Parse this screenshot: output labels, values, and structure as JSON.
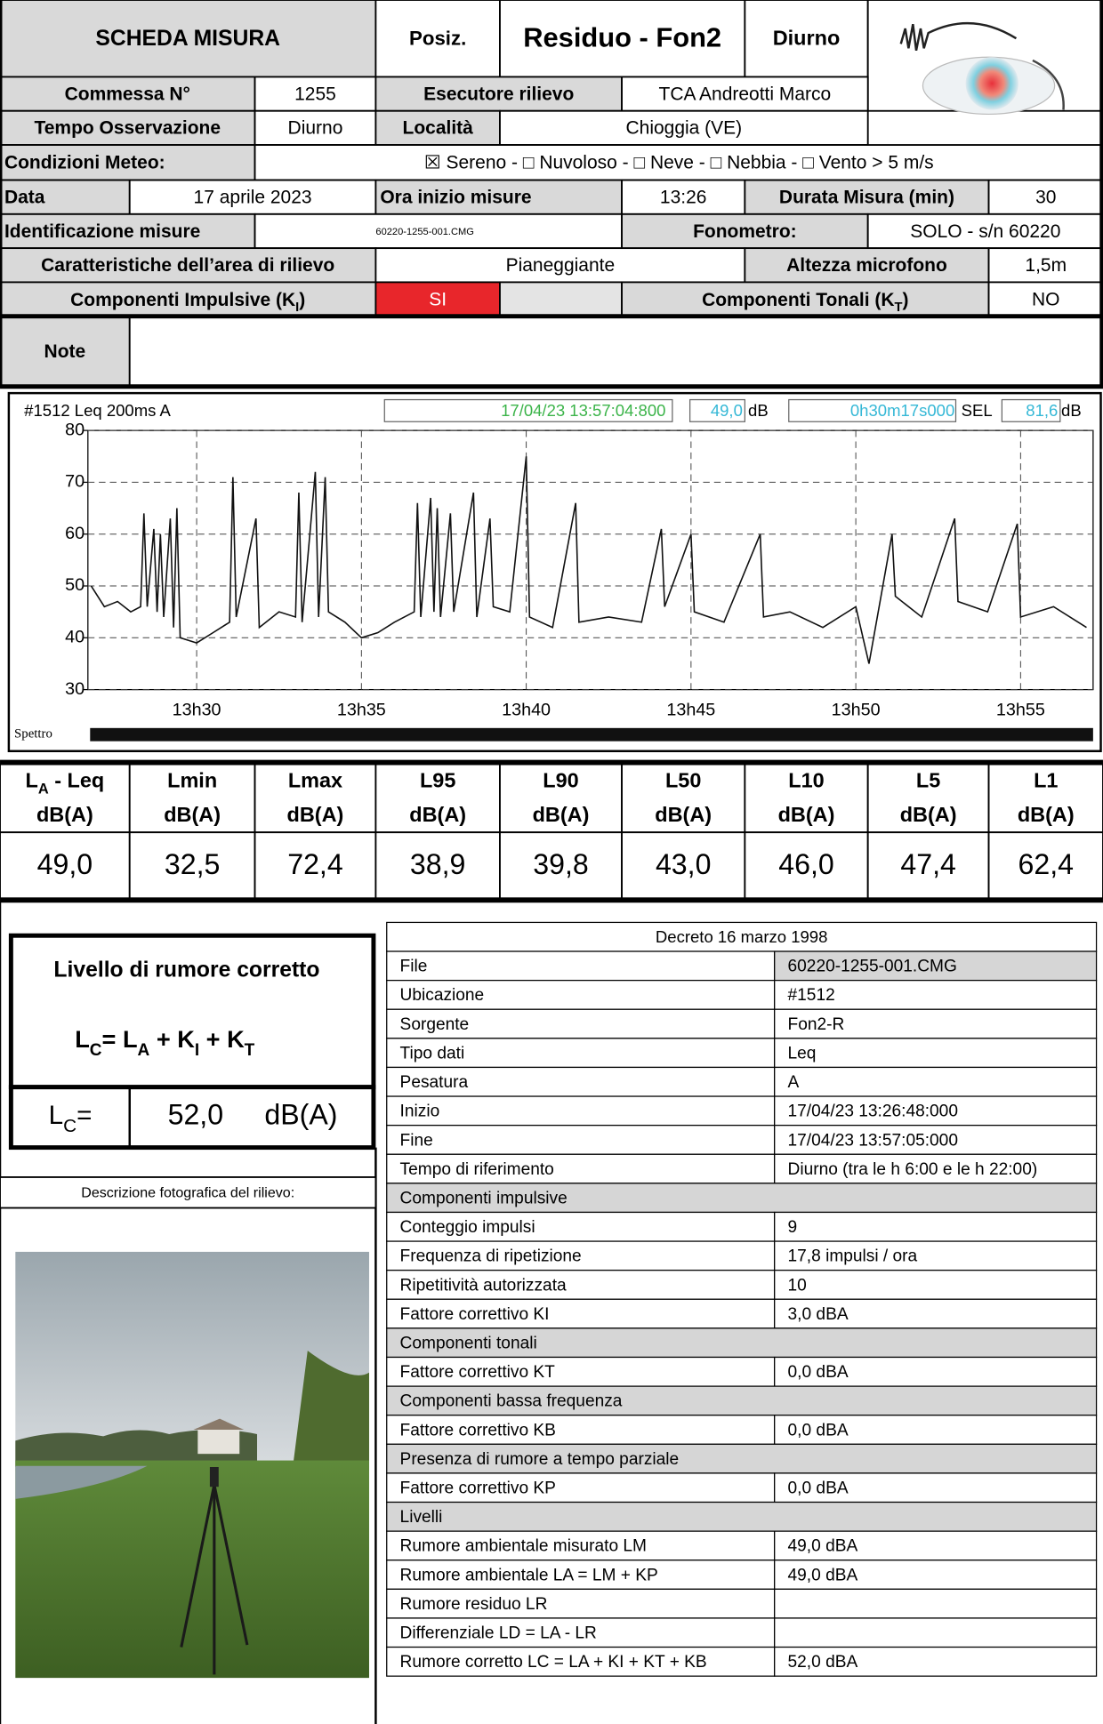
{
  "sheet": {
    "title": "SCHEDA MISURA",
    "posiz_label": "Posiz.",
    "posiz": "Residuo - Fon2",
    "period": "Diurno",
    "commessa_label": "Commessa N°",
    "commessa": "1255",
    "esecutore_label": "Esecutore rilievo",
    "esecutore": "TCA Andreotti Marco",
    "tempo_label": "Tempo Osservazione",
    "tempo": "Diurno",
    "localita_label": "Località",
    "localita": "Chioggia (VE)",
    "meteo_label": "Condizioni Meteo:",
    "meteo": "☒ Sereno - □ Nuvoloso - □ Neve - □ Nebbia - □ Vento > 5 m/s",
    "data_label": "Data",
    "data": "17 aprile 2023",
    "ora_label": "Ora inizio misure",
    "ora": "13:26",
    "durata_label": "Durata Misura (min)",
    "durata": "30",
    "id_label": "Identificazione misure",
    "id": "60220-1255-001.CMG",
    "fonometro_label": "Fonometro:",
    "fonometro": "SOLO - s/n  60220",
    "area_label": "Caratteristiche dell’area di rilievo",
    "area": "Pianeggiante",
    "altezza_label": "Altezza microfono",
    "altezza": "1,5m",
    "ki_label": [
      "Componenti Impulsive (K",
      "I",
      ")"
    ],
    "ki": "SI",
    "kt_label": [
      "Componenti Tonali (K",
      "T",
      ")"
    ],
    "kt": "NO",
    "note_label": "Note"
  },
  "chart_data": {
    "type": "line",
    "header": [
      "#1512  Leq 200ms  A",
      "17/04/23 13:57:04:800",
      "49,0",
      "dB",
      "0h30m17s000",
      "SEL",
      "81,6",
      "dB"
    ],
    "footer": "Spettro",
    "color": "#111111",
    "grid": true,
    "xlim": [
      26.7,
      57.2
    ],
    "ylim": [
      30,
      80
    ],
    "yticks": [
      30,
      40,
      50,
      60,
      70,
      80
    ],
    "xticks": [
      {
        "value": 30,
        "label": "13h30"
      },
      {
        "value": 35,
        "label": "13h35"
      },
      {
        "value": 40,
        "label": "13h40"
      },
      {
        "value": 45,
        "label": "13h45"
      },
      {
        "value": 50,
        "label": "13h50"
      },
      {
        "value": 55,
        "label": "13h55"
      }
    ],
    "x": [
      26.8,
      27.2,
      27.6,
      28.0,
      28.3,
      28.4,
      28.5,
      28.7,
      28.8,
      28.9,
      29.0,
      29.2,
      29.3,
      29.4,
      29.5,
      30.0,
      30.5,
      31.0,
      31.1,
      31.2,
      31.8,
      31.9,
      32.5,
      33.0,
      33.1,
      33.2,
      33.6,
      33.7,
      33.9,
      34.0,
      34.5,
      35.0,
      35.5,
      36.0,
      36.6,
      36.7,
      36.8,
      37.1,
      37.2,
      37.3,
      37.4,
      37.7,
      37.8,
      38.4,
      38.5,
      38.9,
      39.0,
      39.5,
      40.0,
      40.1,
      40.8,
      41.5,
      41.6,
      42.5,
      43.5,
      44.1,
      44.2,
      45.0,
      45.1,
      46.0,
      47.1,
      47.2,
      48.0,
      49.0,
      50.0,
      50.4,
      51.1,
      51.2,
      52.0,
      53.0,
      53.1,
      54.0,
      54.9,
      55.0,
      56.0,
      57.0
    ],
    "values": [
      50,
      46,
      47,
      45,
      46,
      64,
      46,
      61,
      45,
      60,
      44,
      63,
      42,
      65,
      40,
      39,
      41,
      43,
      71,
      44,
      63,
      42,
      45,
      44,
      68,
      43,
      72,
      44,
      71,
      45,
      43,
      40,
      41,
      43,
      45,
      66,
      44,
      67,
      45,
      65,
      44,
      64,
      45,
      68,
      44,
      63,
      46,
      45,
      75,
      44,
      42,
      66,
      43,
      44,
      43,
      61,
      46,
      60,
      45,
      43,
      60,
      44,
      45,
      42,
      46,
      35,
      60,
      48,
      44,
      63,
      47,
      45,
      62,
      44,
      46,
      42
    ]
  },
  "stats": {
    "headers": [
      {
        "name": "L",
        "sub": "A",
        "suffix": " - Leq",
        "unit": "dB(A)"
      },
      {
        "name": "Lmin",
        "unit": "dB(A)"
      },
      {
        "name": "Lmax",
        "unit": "dB(A)"
      },
      {
        "name": "L95",
        "unit": "dB(A)"
      },
      {
        "name": "L90",
        "unit": "dB(A)"
      },
      {
        "name": "L50",
        "unit": "dB(A)"
      },
      {
        "name": "L10",
        "unit": "dB(A)"
      },
      {
        "name": "L5",
        "unit": "dB(A)"
      },
      {
        "name": "L1",
        "unit": "dB(A)"
      }
    ],
    "values": [
      "49,0",
      "32,5",
      "72,4",
      "38,9",
      "39,8",
      "43,0",
      "46,0",
      "47,4",
      "62,4"
    ]
  },
  "corrected": {
    "title": "Livello di rumore corretto",
    "formula": [
      "L",
      "C",
      "= L",
      "A",
      " + K",
      "I",
      " + K",
      "T"
    ],
    "lc_label": [
      "L",
      "C",
      "="
    ],
    "lc": "52,0",
    "unit": "dB(A)"
  },
  "photo": {
    "caption": "Descrizione fotografica del rilievo:"
  },
  "report": {
    "title": "Decreto 16 marzo 1998",
    "rows": [
      {
        "label": "File",
        "value": "60220-1255-001.CMG"
      },
      {
        "label": "Ubicazione",
        "value": "#1512"
      },
      {
        "label": "Sorgente",
        "value": "Fon2-R"
      },
      {
        "label": "Tipo dati",
        "value": "Leq"
      },
      {
        "label": "Pesatura",
        "value": "A"
      },
      {
        "label": "Inizio",
        "value": "17/04/23 13:26:48:000"
      },
      {
        "label": "Fine",
        "value": "17/04/23 13:57:05:000"
      },
      {
        "label": "Tempo di riferimento",
        "value": "Diurno (tra le h 6:00 e le h 22:00)"
      },
      {
        "section": "Componenti impulsive"
      },
      {
        "label": "Conteggio impulsi",
        "value": "9"
      },
      {
        "label": "Frequenza di ripetizione",
        "value": "17,8 impulsi / ora"
      },
      {
        "label": "Ripetitività autorizzata",
        "value": "10"
      },
      {
        "label": "Fattore correttivo KI",
        "value": "3,0 dBA"
      },
      {
        "section": "Componenti tonali"
      },
      {
        "label": "Fattore correttivo KT",
        "value": "0,0 dBA"
      },
      {
        "section": "Componenti bassa frequenza"
      },
      {
        "label": "Fattore correttivo KB",
        "value": "0,0 dBA"
      },
      {
        "section": "Presenza di rumore a tempo parziale"
      },
      {
        "label": "Fattore correttivo KP",
        "value": "0,0 dBA"
      },
      {
        "section": "Livelli"
      },
      {
        "label": "Rumore ambientale misurato LM",
        "value": "49,0 dBA"
      },
      {
        "label": "Rumore ambientale LA = LM + KP",
        "value": "49,0 dBA"
      },
      {
        "label": "Rumore residuo LR"
      },
      {
        "label": "Differenziale  LD = LA - LR"
      },
      {
        "label": "Rumore corretto  LC = LA + KI + KT + KB",
        "value": "52,0 dBA"
      }
    ]
  }
}
